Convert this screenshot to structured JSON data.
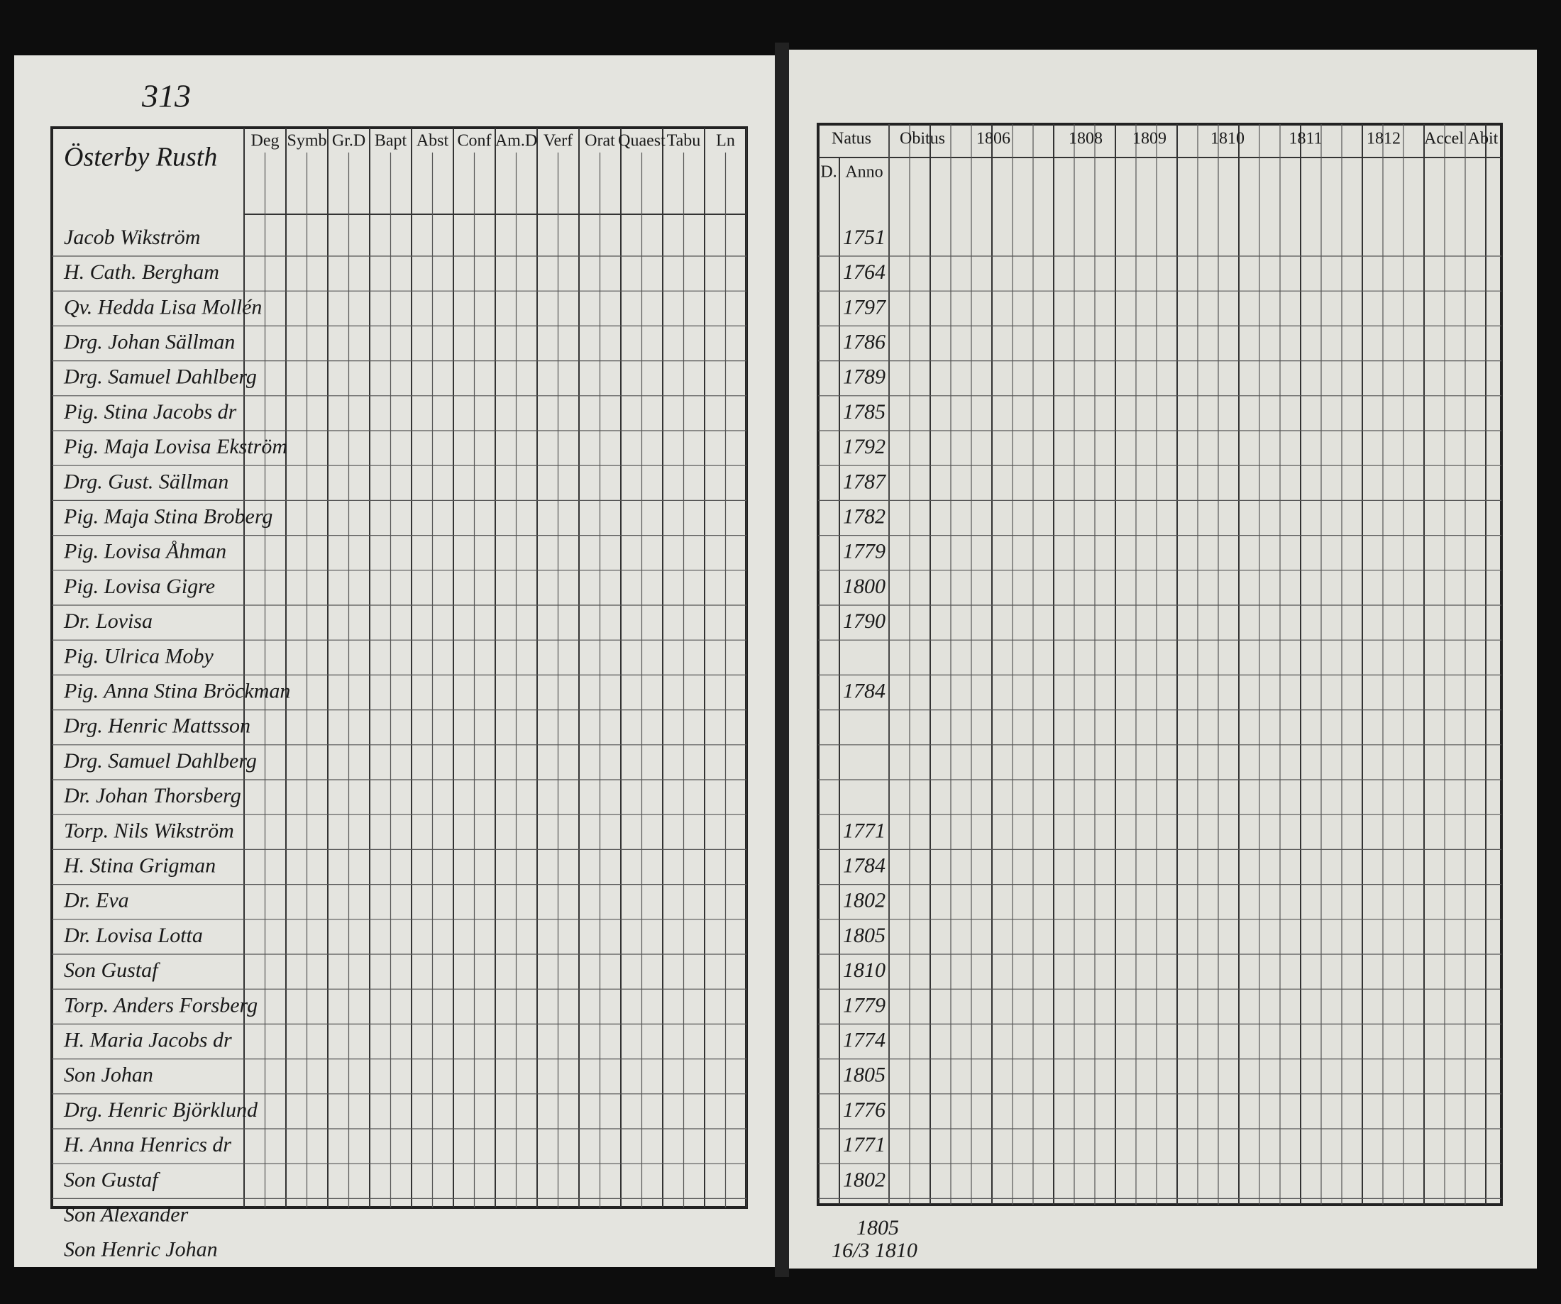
{
  "page_number": "313",
  "left_page": {
    "village": "Österby Rusth",
    "column_headers": [
      "Deg",
      "Symb",
      "Gr.D",
      "Bapt",
      "Abst",
      "Conf",
      "Am.D",
      "Verf",
      "Orat",
      "Quaest",
      "Tabu",
      "Ln"
    ]
  },
  "right_page": {
    "column_headers": [
      "Natus",
      "Obitus",
      "1806",
      "1808",
      "1809",
      "1810",
      "1811",
      "1812",
      "Accel",
      "Abit"
    ],
    "sub_headers": [
      "D.",
      "Anno"
    ]
  },
  "entries": [
    {
      "name": "Jacob Wikström",
      "born": "1751"
    },
    {
      "name": "H. Cath. Bergham",
      "born": "1764"
    },
    {
      "name": "Qv. Hedda Lisa Mollén",
      "born": "1797"
    },
    {
      "name": "Drg. Johan Sällman",
      "born": "1786"
    },
    {
      "name": "Drg. Samuel Dahlberg",
      "born": "1789"
    },
    {
      "name": "Pig. Stina Jacobs dr",
      "born": "1785"
    },
    {
      "name": "Pig. Maja Lovisa Ekström",
      "born": "1792"
    },
    {
      "name": "Drg. Gust. Sällman",
      "born": "1787"
    },
    {
      "name": "Pig. Maja Stina Broberg",
      "born": "1782"
    },
    {
      "name": "Pig. Lovisa Åhman",
      "born": "1779"
    },
    {
      "name": "Pig. Lovisa Gigre",
      "born": "1800"
    },
    {
      "name": "Dr. Lovisa",
      "born": "1790"
    },
    {
      "name": "Pig. Ulrica Moby",
      "born": null
    },
    {
      "name": "Pig. Anna Stina Bröckman",
      "born": "1784"
    },
    {
      "name": "Drg. Henric Mattsson",
      "born": null
    },
    {
      "name": "Drg. Samuel Dahlberg",
      "born": null
    },
    {
      "name": "Dr. Johan Thorsberg",
      "born": null
    },
    {
      "name": "Torp. Nils Wikström",
      "born": "1771"
    },
    {
      "name": "H. Stina Grigman",
      "born": "1784"
    },
    {
      "name": "Dr. Eva",
      "born": "1802"
    },
    {
      "name": "Dr. Lovisa Lotta",
      "born": "1805"
    },
    {
      "name": "Son Gustaf",
      "born": "1810"
    },
    {
      "name": "Torp. Anders Forsberg",
      "born": "1779"
    },
    {
      "name": "H. Maria Jacobs dr",
      "born": "1774"
    },
    {
      "name": "Son Johan",
      "born": "1805"
    },
    {
      "name": "Drg. Henric Björklund",
      "born": "1776"
    },
    {
      "name": "H. Anna Henrics dr",
      "born": "1771"
    },
    {
      "name": "Son Gustaf",
      "born": "1802"
    },
    {
      "name": "Son Alexander",
      "born": null
    },
    {
      "name": "Son Henric Johan",
      "born": null
    }
  ],
  "notes": [
    "1805",
    "16/3 1810"
  ]
}
